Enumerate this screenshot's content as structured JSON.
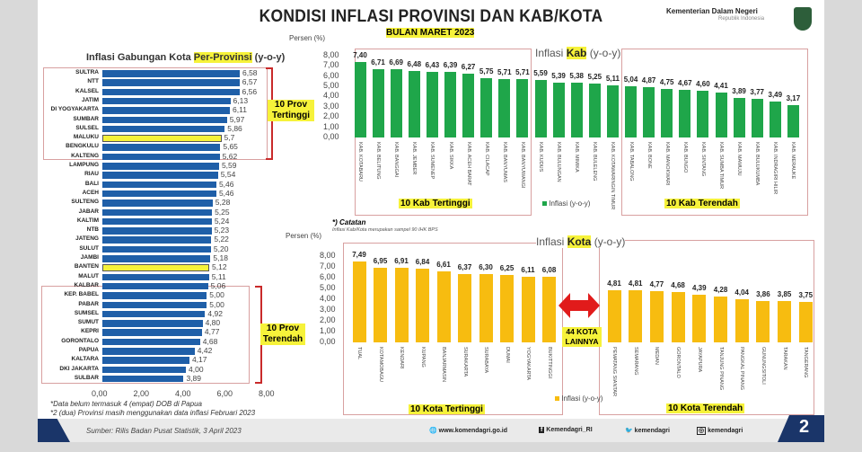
{
  "header": {
    "title": "KONDISI INFLASI PROVINSI DAN KAB/KOTA",
    "subtitle": "BULAN MARET 2023",
    "ministry": "Kementerian Dalam Negeri",
    "ministry_sub": "Republik Indonesia"
  },
  "colors": {
    "province_bar": "#1f5fa8",
    "province_highlight": "#f6f23a",
    "kab_bar": "#1fa64a",
    "kota_bar": "#f7bc10",
    "bracket": "#c92a2a",
    "footer_dark": "#1a3569"
  },
  "chart_data": [
    {
      "type": "bar",
      "orientation": "horizontal",
      "title": "Inflasi Gabungan Kota Per-Provinsi (y-o-y)",
      "title_parts": [
        "Inflasi Gabungan Kota ",
        "Per-Provinsi",
        " (y-o-y)"
      ],
      "xlim": [
        0,
        8
      ],
      "xticks": [
        "0,00",
        "2,00",
        "4,00",
        "6,00",
        "8,00"
      ],
      "categories": [
        "SULTRA",
        "NTT",
        "KALSEL",
        "JATIM",
        "DI YOGYAKARTA",
        "SUMBAR",
        "SULSEL",
        "MALUKU",
        "BENGKULU",
        "KALTENG",
        "LAMPUNG",
        "RIAU",
        "BALI",
        "ACEH",
        "SULTENG",
        "JABAR",
        "KALTIM",
        "NTB",
        "JATENG",
        "SULUT",
        "JAMBI",
        "BANTEN",
        "MALUT",
        "KALBAR",
        "KEP. BABEL",
        "PABAR",
        "SUMSEL",
        "SUMUT",
        "KEPRI",
        "GORONTALO",
        "PAPUA",
        "KALTARA",
        "DKI JAKARTA",
        "SULBAR"
      ],
      "values": [
        6.58,
        6.57,
        6.56,
        6.13,
        6.11,
        5.97,
        5.86,
        5.7,
        5.65,
        5.62,
        5.59,
        5.54,
        5.46,
        5.46,
        5.28,
        5.25,
        5.24,
        5.23,
        5.22,
        5.2,
        5.18,
        5.12,
        5.11,
        5.06,
        5.0,
        5.0,
        4.92,
        4.8,
        4.77,
        4.68,
        4.42,
        4.17,
        4.0,
        3.89
      ],
      "labels": [
        "6,58",
        "6,57",
        "6,56",
        "6,13",
        "6,11",
        "5,97",
        "5,86",
        "5,7",
        "5,65",
        "5,62",
        "5,59",
        "5,54",
        "5,46",
        "5,46",
        "5,28",
        "5,25",
        "5,24",
        "5,23",
        "5,22",
        "5,20",
        "5,18",
        "5,12",
        "5,11",
        "5,06",
        "5,00",
        "5,00",
        "4,92",
        "4,80",
        "4,77",
        "4,68",
        "4,42",
        "4,17",
        "4,00",
        "3,89"
      ],
      "highlighted": [
        "MALUKU",
        "BANTEN"
      ],
      "annotations": [
        "10 Prov Tertinggi",
        "10 Prov Terendah"
      ],
      "notes": [
        "*Data belum termasuk 4 (empat) DOB di Papua",
        "*2 (dua) Provinsi masih menggunakan data inflasi Februari 2023"
      ]
    },
    {
      "type": "bar",
      "title": "Inflasi Kab (y-o-y)",
      "title_parts": [
        "Inflasi ",
        "Kab",
        " (y-o-y)"
      ],
      "ylabel": "Persen (%)",
      "ylim": [
        0,
        8
      ],
      "yticks": [
        "0,00",
        "1,00",
        "2,00",
        "3,00",
        "4,00",
        "5,00",
        "6,00",
        "7,00",
        "8,00"
      ],
      "legend": "Inflasi (y-o-y)",
      "categories": [
        "KAB. KOTABARU",
        "KAB. BELITUNG",
        "KAB. BANGGAI",
        "KAB. JEMBER",
        "KAB. SUMENEP",
        "KAB. SIKKA",
        "KAB. ACEH BARAT",
        "KAB. CILACAP",
        "KAB. BANYUMAS",
        "KAB. BANYUWANGI",
        "KAB. KUDUS",
        "KAB. BULUNGAN",
        "KAB. MIMIKA",
        "KAB. BULELENG",
        "KAB. KOTAWARINGIN TIMUR",
        "KAB. TABALONG",
        "KAB. BONE",
        "KAB. MANOKWARI",
        "KAB. BUNGO",
        "KAB. SINTANG",
        "KAB. SUMBA TIMUR",
        "KAB. MAMUJU",
        "KAB. BULUKUMBA",
        "KAB. INDRAGIRI HILIR",
        "KAB. MERAUKE"
      ],
      "values": [
        7.4,
        6.71,
        6.69,
        6.48,
        6.43,
        6.39,
        6.27,
        5.75,
        5.71,
        5.71,
        5.59,
        5.39,
        5.38,
        5.25,
        5.11,
        5.04,
        4.87,
        4.75,
        4.67,
        4.6,
        4.41,
        3.89,
        3.77,
        3.49,
        3.17
      ],
      "labels": [
        "7,40",
        "6,71",
        "6,69",
        "6,48",
        "6,43",
        "6,39",
        "6,27",
        "5,75",
        "5,71",
        "5,71",
        "5,59",
        "5,39",
        "5,38",
        "5,25",
        "5,11",
        "5,04",
        "4,87",
        "4,75",
        "4,67",
        "4,60",
        "4,41",
        "3,89",
        "3,77",
        "3,49",
        "3,17"
      ],
      "annotations": [
        "10 Kab Tertinggi",
        "10 Kab Terendah"
      ]
    },
    {
      "type": "bar",
      "title": "Inflasi Kota (y-o-y)",
      "title_parts": [
        "Inflasi ",
        "Kota",
        " (y-o-y)"
      ],
      "ylabel": "Persen (%)",
      "ylim": [
        0,
        8
      ],
      "yticks": [
        "0,00",
        "1,00",
        "2,00",
        "3,00",
        "4,00",
        "5,00",
        "6,00",
        "7,00",
        "8,00"
      ],
      "legend": "Inflasi (y-o-y)",
      "categories": [
        "TUAL",
        "KOTAMOBAGU",
        "KENDARI",
        "KUPANG",
        "BANJARMASIN",
        "SURAKARTA",
        "SURABAYA",
        "DUMAI",
        "YOGYAKARTA",
        "BUKITTINGGI",
        "PEMATANG SIANTAR",
        "SEMARANG",
        "MEDAN",
        "GORONTALO",
        "JAYAPURA",
        "TANJUNG PINANG",
        "PANGKAL PINANG",
        "GUNUNGSITOLI",
        "TARAKAN",
        "TANGERANG"
      ],
      "values": [
        7.49,
        6.95,
        6.91,
        6.84,
        6.61,
        6.37,
        6.3,
        6.25,
        6.11,
        6.08,
        4.81,
        4.81,
        4.77,
        4.68,
        4.39,
        4.28,
        4.04,
        3.86,
        3.85,
        3.75
      ],
      "labels": [
        "7,49",
        "6,95",
        "6,91",
        "6,84",
        "6,61",
        "6,37",
        "6,30",
        "6,25",
        "6,11",
        "6,08",
        "4,81",
        "4,81",
        "4,77",
        "4,68",
        "4,39",
        "4,28",
        "4,04",
        "3,86",
        "3,85",
        "3,75"
      ],
      "annotations": [
        "10 Kota Tertinggi",
        "10 Kota Terendah",
        "44 KOTA LAINNYA"
      ],
      "note_title": "*) Catatan",
      "note": "Inflasi Kab/Kota merupakan sampel 90 IHK BPS"
    }
  ],
  "footer": {
    "source": "Sumber: Rilis Badan Pusat Statistik, 3 April 2023",
    "website": "www.komendagri.go.id",
    "facebook": "Kemendagri_RI",
    "twitter": "kemendagri",
    "instagram": "kemendagri",
    "page": "2"
  }
}
